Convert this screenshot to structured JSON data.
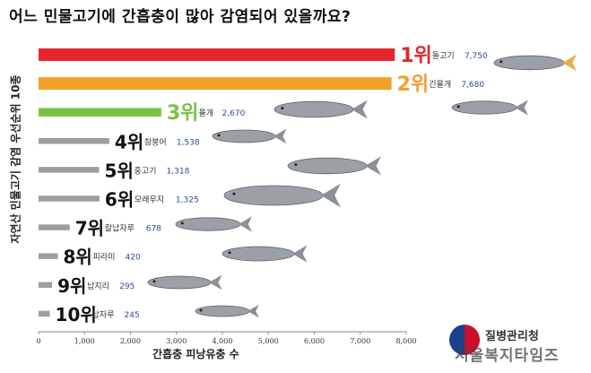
{
  "title": "어느 민물고기에 간흡충이 많아 감염되어 있을까요?",
  "agency": "질병관리청",
  "watermark": "서울복지타임즈",
  "chart_data": {
    "type": "bar",
    "orientation": "horizontal",
    "title": "어느 민물고기에 간흡충이 많아 감염되어 있을까요?",
    "xlabel": "간흡충 피낭유충 수",
    "ylabel": "자연산 민물고기 감염 우선순위 10종",
    "xlim": [
      0,
      8000
    ],
    "xticks": [
      "0",
      "1,000",
      "2,000",
      "3,000",
      "4,000",
      "5,000",
      "6,000",
      "7,000",
      "8,000"
    ],
    "grid": false,
    "bars": [
      {
        "rank": "1위",
        "name": "돌고기",
        "value": 7750,
        "label": "7,750",
        "color": "#e3262b",
        "rank_color": "#e3262b"
      },
      {
        "rank": "2위",
        "name": "긴몰개",
        "value": 7680,
        "label": "7,680",
        "color": "#f2a02a",
        "rank_color": "#f2a02a"
      },
      {
        "rank": "3위",
        "name": "몰개",
        "value": 2670,
        "label": "2,670",
        "color": "#7cc242",
        "rank_color": "#7cc242"
      },
      {
        "rank": "4위",
        "name": "참붕어",
        "value": 1538,
        "label": "1,538",
        "color": "#9e9e9e",
        "rank_color": "#111111"
      },
      {
        "rank": "5위",
        "name": "중고기",
        "value": 1318,
        "label": "1,318",
        "color": "#9e9e9e",
        "rank_color": "#111111"
      },
      {
        "rank": "6위",
        "name": "모래무지",
        "value": 1325,
        "label": "1,325",
        "color": "#9e9e9e",
        "rank_color": "#111111"
      },
      {
        "rank": "7위",
        "name": "칼납자루",
        "value": 678,
        "label": "678",
        "color": "#9e9e9e",
        "rank_color": "#111111"
      },
      {
        "rank": "8위",
        "name": "피라미",
        "value": 420,
        "label": "420",
        "color": "#9e9e9e",
        "rank_color": "#111111"
      },
      {
        "rank": "9위",
        "name": "납지리",
        "value": 295,
        "label": "295",
        "color": "#9e9e9e",
        "rank_color": "#111111"
      },
      {
        "rank": "10위",
        "name": "납자루",
        "value": 245,
        "label": "245",
        "color": "#9e9e9e",
        "rank_color": "#111111"
      }
    ]
  }
}
